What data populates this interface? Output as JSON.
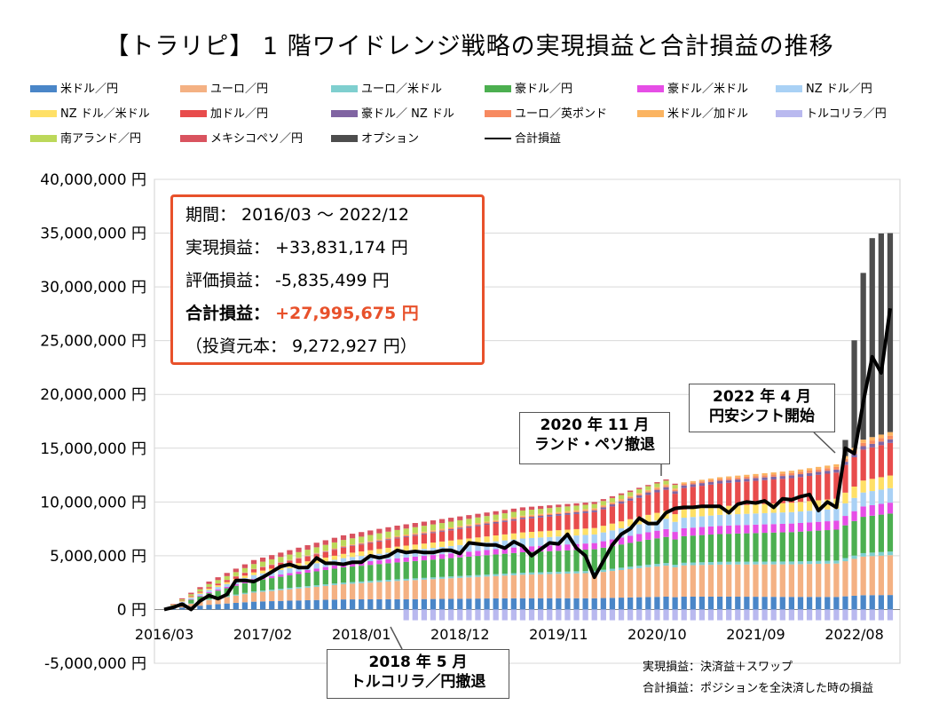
{
  "title": "【トラリピ】 1 階ワイドレンジ戦略の実現損益と合計損益の推移",
  "legend": [
    {
      "label": "米ドル／円",
      "color": "#4a86c8"
    },
    {
      "label": "ユーロ／円",
      "color": "#f4b183"
    },
    {
      "label": "ユーロ／米ドル",
      "color": "#7fcfcf"
    },
    {
      "label": "豪ドル／円",
      "color": "#4caf50"
    },
    {
      "label": "豪ドル／米ドル",
      "color": "#e64ee6"
    },
    {
      "label": "NZ ドル／円",
      "color": "#a9d1f5"
    },
    {
      "label": "NZ ドル／米ドル",
      "color": "#ffe066"
    },
    {
      "label": "加ドル／円",
      "color": "#e84c4c"
    },
    {
      "label": "豪ドル／ NZ ドル",
      "color": "#8064a2"
    },
    {
      "label": "ユーロ／英ポンド",
      "color": "#f78a60"
    },
    {
      "label": "米ドル／加ドル",
      "color": "#fbb461"
    },
    {
      "label": "トルコリラ／円",
      "color": "#b9b9ef"
    },
    {
      "label": "南アランド／円",
      "color": "#bcd85a"
    },
    {
      "label": "メキシコペソ／円",
      "color": "#d9535f"
    },
    {
      "label": "オプション",
      "color": "#4d4d4d"
    },
    {
      "label": "合計損益",
      "color": "#000000"
    }
  ],
  "summary": {
    "period": "期間： 2016/03 ～ 2022/12",
    "realized": "実現損益： +33,831,174 円",
    "unrealized": "評価損益： -5,835,499 円",
    "total_label": "合計損益：",
    "total_value": "+27,995,675 円",
    "principal": "（投資元本： 9,272,927 円）"
  },
  "callouts": {
    "nov2020": [
      "2020 年 11 月",
      "ランド・ペソ撤退"
    ],
    "apr2022": [
      "2022 年 4 月",
      "円安シフト開始"
    ],
    "may2018": [
      "2018 年 5 月",
      "トルコリラ／円撤退"
    ]
  },
  "notes": {
    "n1": "実現損益：決済益＋スワップ",
    "n2": "合計損益：ポジションを全決済した時の損益"
  },
  "chart_data": {
    "type": "bar",
    "stacked": true,
    "title": "【トラリピ】 1 階ワイドレンジ戦略の実現損益と合計損益の推移",
    "ylim": [
      -5000000,
      40000000
    ],
    "yticks": [
      -5000000,
      0,
      5000000,
      10000000,
      15000000,
      20000000,
      25000000,
      30000000,
      35000000,
      40000000
    ],
    "ytick_labels": [
      "-5,000,000 円",
      "0 円",
      "5,000,000 円",
      "10,000,000 円",
      "15,000,000 円",
      "20,000,000 円",
      "25,000,000 円",
      "30,000,000 円",
      "35,000,000 円",
      "40,000,000 円"
    ],
    "xtick_labels": [
      "2016/03",
      "2017/02",
      "2018/01",
      "2018/12",
      "2019/11",
      "2020/10",
      "2021/09",
      "2022/08"
    ],
    "xtick_indices": [
      0,
      11,
      22,
      33,
      44,
      55,
      66,
      77
    ],
    "n_months": 82,
    "start_month": "2016/03",
    "end_month": "2022/12",
    "realized_anchors": [
      [
        0,
        0
      ],
      [
        5,
        2600000
      ],
      [
        10,
        4600000
      ],
      [
        20,
        6900000
      ],
      [
        26,
        7800000
      ],
      [
        35,
        8900000
      ],
      [
        40,
        9500000
      ],
      [
        48,
        10000000
      ],
      [
        51,
        10800000
      ],
      [
        56,
        12100000
      ],
      [
        57,
        11700000
      ],
      [
        62,
        12300000
      ],
      [
        70,
        12900000
      ],
      [
        75,
        13500000
      ],
      [
        78,
        15800000
      ],
      [
        81,
        16500000
      ]
    ],
    "option_anchors": [
      [
        75,
        0
      ],
      [
        76,
        1500000
      ],
      [
        77,
        10000000
      ],
      [
        78,
        15500000
      ],
      [
        79,
        18500000
      ],
      [
        80,
        18700000
      ],
      [
        81,
        18500000
      ]
    ],
    "turkish_lira_anchors": [
      [
        26,
        0
      ],
      [
        27,
        -1000000
      ],
      [
        81,
        -1000000
      ]
    ],
    "series_shares": [
      {
        "name": "米ドル／円",
        "share": [
          0.18,
          0.12,
          0.1,
          0.08
        ]
      },
      {
        "name": "ユーロ／円",
        "share": [
          0.16,
          0.22,
          0.24,
          0.22
        ]
      },
      {
        "name": "ユーロ／米ドル",
        "share": [
          0.03,
          0.02,
          0.02,
          0.02
        ]
      },
      {
        "name": "豪ドル／円",
        "share": [
          0.22,
          0.2,
          0.2,
          0.21
        ]
      },
      {
        "name": "豪ドル／米ドル",
        "share": [
          0.03,
          0.05,
          0.06,
          0.06
        ]
      },
      {
        "name": "NZ ドル／円",
        "share": [
          0.08,
          0.08,
          0.08,
          0.08
        ]
      },
      {
        "name": "NZ ドル／米ドル",
        "share": [
          0.05,
          0.06,
          0.06,
          0.07
        ]
      },
      {
        "name": "加ドル／円",
        "share": [
          0.04,
          0.1,
          0.16,
          0.18
        ]
      },
      {
        "name": "豪ドル／ NZ ドル",
        "share": [
          0.0,
          0.01,
          0.02,
          0.02
        ]
      },
      {
        "name": "ユーロ／英ポンド",
        "share": [
          0.0,
          0.01,
          0.01,
          0.02
        ]
      },
      {
        "name": "米ドル／加ドル",
        "share": [
          0.0,
          0.01,
          0.01,
          0.02
        ]
      },
      {
        "name": "南アランド／円",
        "share": [
          0.11,
          0.07,
          0.03,
          0.01
        ]
      },
      {
        "name": "メキシコペソ／円",
        "share": [
          0.1,
          0.05,
          0.01,
          0.01
        ]
      }
    ],
    "total_pl": [
      0,
      200000,
      500000,
      0,
      800000,
      1300000,
      1000000,
      1400000,
      2700000,
      2700000,
      2600000,
      3000000,
      3500000,
      4000000,
      4200000,
      3900000,
      3900000,
      4800000,
      4300000,
      4300000,
      4200000,
      4400000,
      4400000,
      5000000,
      4800000,
      5000000,
      5500000,
      5300000,
      5400000,
      5300000,
      5300000,
      5500000,
      5500000,
      5200000,
      6200000,
      6100000,
      6000000,
      6000000,
      5700000,
      6300000,
      5900000,
      5000000,
      5600000,
      6200000,
      6100000,
      7000000,
      5700000,
      5000000,
      3000000,
      4500000,
      6000000,
      7000000,
      7500000,
      8500000,
      8000000,
      8000000,
      9000000,
      9400000,
      9500000,
      9500000,
      9600000,
      9600000,
      9600000,
      9000000,
      9800000,
      10000000,
      9900000,
      10100000,
      9500000,
      10300000,
      10200000,
      10500000,
      10700000,
      9200000,
      10000000,
      9500000,
      15000000,
      14500000,
      19300000,
      23500000,
      22000000,
      28000000
    ]
  }
}
